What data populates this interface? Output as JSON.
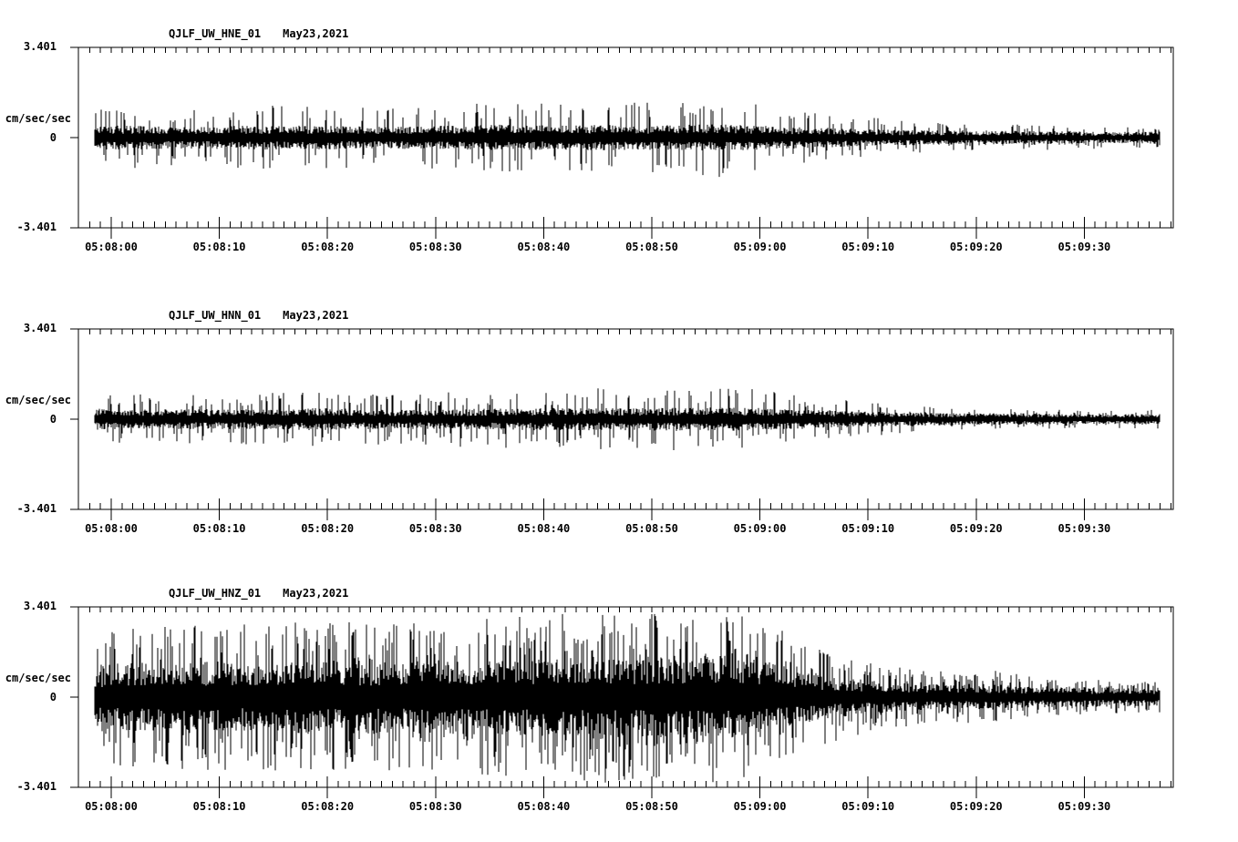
{
  "page": {
    "background_color": "#ffffff",
    "trace_color": "#000000",
    "axis_color": "#000000"
  },
  "chart_data": [
    {
      "type": "line",
      "subtype": "seismogram",
      "station_label": "QJLF_UW_HNE_01",
      "date_label": "May23,2021",
      "ylabel": "cm/sec/sec",
      "ylim": [
        -3.401,
        3.401
      ],
      "yticks": [
        3.401,
        0,
        -3.401
      ],
      "ytick_labels": [
        "3.401",
        "0",
        "-3.401"
      ],
      "xtick_labels": [
        "05:08:00",
        "05:08:10",
        "05:08:20",
        "05:08:30",
        "05:08:40",
        "05:08:50",
        "05:09:00",
        "05:09:10",
        "05:09:20",
        "05:09:30"
      ],
      "x_window": {
        "start": "05:07:57",
        "end": "05:09:38",
        "major_tick_sec": 10,
        "minor_tick_sec": 1
      },
      "grid": false,
      "legend": "none",
      "trace": {
        "start_sec": 1.5,
        "end_sec": 100,
        "envelope_t_sec": [
          0,
          4,
          10,
          16,
          22,
          28,
          34,
          40,
          44,
          48,
          52,
          56,
          60,
          63,
          66,
          69,
          72,
          75,
          78,
          81,
          84,
          88,
          92,
          96,
          100
        ],
        "envelope_peak": [
          1.17,
          1.24,
          1.1,
          1.17,
          1.31,
          1.13,
          1.2,
          1.37,
          1.24,
          1.48,
          1.31,
          1.44,
          1.51,
          1.31,
          1.13,
          0.96,
          0.82,
          0.69,
          0.58,
          0.52,
          0.48,
          0.55,
          0.45,
          0.41,
          0.45
        ],
        "envelope_core": [
          0.41,
          0.41,
          0.38,
          0.41,
          0.41,
          0.38,
          0.41,
          0.45,
          0.41,
          0.45,
          0.41,
          0.45,
          0.45,
          0.41,
          0.38,
          0.34,
          0.31,
          0.27,
          0.26,
          0.24,
          0.22,
          0.24,
          0.21,
          0.19,
          0.21
        ]
      }
    },
    {
      "type": "line",
      "subtype": "seismogram",
      "station_label": "QJLF_UW_HNN_01",
      "date_label": "May23,2021",
      "ylabel": "cm/sec/sec",
      "ylim": [
        -3.401,
        3.401
      ],
      "yticks": [
        3.401,
        0,
        -3.401
      ],
      "ytick_labels": [
        "3.401",
        "0",
        "-3.401"
      ],
      "xtick_labels": [
        "05:08:00",
        "05:08:10",
        "05:08:20",
        "05:08:30",
        "05:08:40",
        "05:08:50",
        "05:09:00",
        "05:09:10",
        "05:09:20",
        "05:09:30"
      ],
      "x_window": {
        "start": "05:07:57",
        "end": "05:09:38",
        "major_tick_sec": 10,
        "minor_tick_sec": 1
      },
      "grid": false,
      "legend": "none",
      "trace": {
        "start_sec": 1.5,
        "end_sec": 100,
        "envelope_t_sec": [
          0,
          4,
          10,
          16,
          22,
          28,
          34,
          40,
          44,
          48,
          52,
          56,
          60,
          63,
          66,
          69,
          72,
          75,
          78,
          81,
          84,
          88,
          92,
          96,
          100
        ],
        "envelope_peak": [
          1.03,
          0.96,
          0.93,
          1.0,
          1.03,
          0.96,
          1.03,
          1.1,
          1.03,
          1.17,
          1.1,
          1.2,
          1.24,
          1.1,
          0.96,
          0.82,
          0.69,
          0.58,
          0.48,
          0.41,
          0.38,
          0.41,
          0.34,
          0.34,
          0.38
        ],
        "envelope_core": [
          0.38,
          0.34,
          0.34,
          0.34,
          0.38,
          0.34,
          0.34,
          0.38,
          0.38,
          0.38,
          0.38,
          0.41,
          0.41,
          0.38,
          0.34,
          0.31,
          0.27,
          0.24,
          0.22,
          0.21,
          0.19,
          0.21,
          0.17,
          0.17,
          0.19
        ]
      }
    },
    {
      "type": "line",
      "subtype": "seismogram",
      "station_label": "QJLF_UW_HNZ_01",
      "date_label": "May23,2021",
      "ylabel": "cm/sec/sec",
      "ylim": [
        -3.401,
        3.401
      ],
      "yticks": [
        3.401,
        0,
        -3.401
      ],
      "ytick_labels": [
        "3.401",
        "0",
        "-3.401"
      ],
      "xtick_labels": [
        "05:08:00",
        "05:08:10",
        "05:08:20",
        "05:08:30",
        "05:08:40",
        "05:08:50",
        "05:09:00",
        "05:09:10",
        "05:09:20",
        "05:09:30"
      ],
      "x_window": {
        "start": "05:07:57",
        "end": "05:09:38",
        "major_tick_sec": 10,
        "minor_tick_sec": 1
      },
      "grid": false,
      "legend": "none",
      "trace": {
        "start_sec": 1.5,
        "end_sec": 100,
        "envelope_t_sec": [
          0,
          4,
          10,
          16,
          22,
          28,
          34,
          40,
          44,
          48,
          52,
          56,
          60,
          63,
          66,
          69,
          72,
          75,
          78,
          81,
          84,
          88,
          92,
          96,
          100
        ],
        "envelope_peak": [
          2.06,
          2.68,
          2.82,
          2.75,
          2.92,
          2.75,
          2.82,
          3.02,
          3.16,
          3.33,
          3.09,
          3.26,
          3.2,
          2.92,
          2.34,
          1.79,
          1.44,
          1.24,
          1.03,
          0.93,
          1.03,
          0.82,
          0.69,
          0.62,
          0.58
        ],
        "envelope_core": [
          0.96,
          1.17,
          1.24,
          1.2,
          1.27,
          1.24,
          1.27,
          1.31,
          1.37,
          1.44,
          1.37,
          1.44,
          1.41,
          1.27,
          1.0,
          0.76,
          0.62,
          0.52,
          0.45,
          0.41,
          0.45,
          0.38,
          0.34,
          0.32,
          0.31
        ]
      }
    }
  ]
}
